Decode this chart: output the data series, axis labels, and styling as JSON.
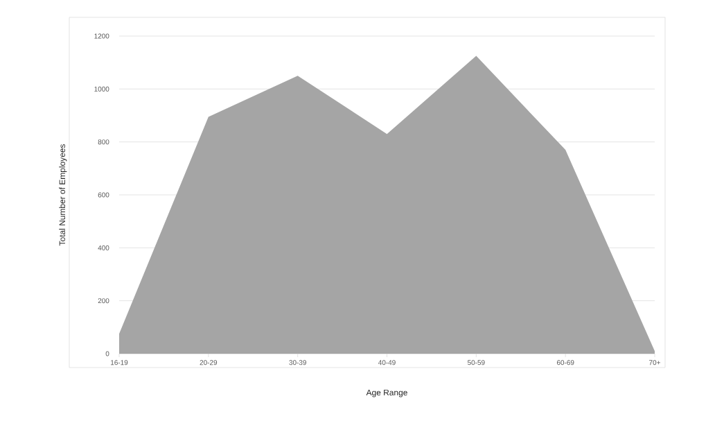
{
  "chart_data": {
    "type": "area",
    "xlabel": "Age Range",
    "ylabel": "Total Number of Employees",
    "categories": [
      "16-19",
      "20-29",
      "30-39",
      "40-49",
      "50-59",
      "60-69",
      "70+"
    ],
    "values": [
      75,
      895,
      1050,
      830,
      1125,
      770,
      10
    ],
    "color": "#a5a5a5",
    "ylim": [
      0,
      1200
    ],
    "yticks": [
      0,
      200,
      400,
      600,
      800,
      1000,
      1200
    ],
    "grid": "y"
  }
}
